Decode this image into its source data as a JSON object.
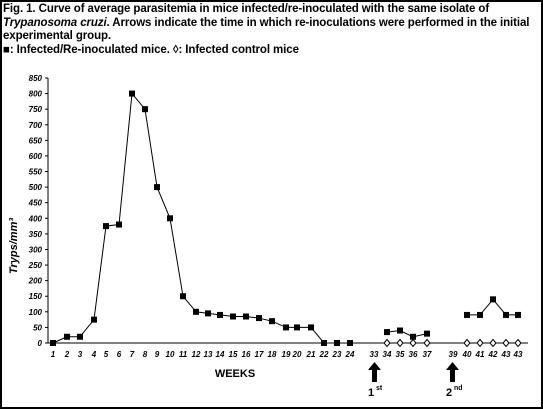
{
  "caption": {
    "part1": "Fig. 1. Curve of average parasitemia in mice infected/re-inoculated with the same isolate of ",
    "italic1": "Trypanosoma cruzi",
    "part2": ". Arrows indicate the time in which re-inoculations were performed in the initial experimental group.",
    "legend_line": "■: Infected/Re-inoculated mice. ◊: Infected control mice"
  },
  "arrows": [
    {
      "main": "1",
      "sup": "st"
    },
    {
      "main": "2",
      "sup": "nd"
    }
  ],
  "colors": {
    "line": "#000000",
    "background": "#ffffff"
  },
  "chart_data": {
    "type": "line",
    "xlabel": "WEEKS",
    "ylabel": "Tryps/mm³",
    "ylim": [
      0,
      850
    ],
    "yticks": [
      0,
      50,
      100,
      150,
      200,
      250,
      300,
      350,
      400,
      450,
      500,
      550,
      600,
      650,
      700,
      750,
      800,
      850
    ],
    "categories": [
      "1",
      "2",
      "3",
      "4",
      "5",
      "6",
      "7",
      "8",
      "9",
      "10",
      "11",
      "12",
      "13",
      "14",
      "15",
      "16",
      "17",
      "18",
      "19",
      "20",
      "21",
      "22",
      "23",
      "24",
      "33",
      "34",
      "35",
      "36",
      "37",
      "39",
      "40",
      "41",
      "42",
      "43",
      "43"
    ],
    "grid": false,
    "series": [
      {
        "marker": "square",
        "segments": [
          {
            "x": [
              "1",
              "2",
              "3",
              "4",
              "5",
              "6",
              "7",
              "8",
              "9",
              "10",
              "11",
              "12",
              "13",
              "14",
              "15",
              "16",
              "17",
              "18",
              "19",
              "20",
              "21",
              "22",
              "23",
              "24"
            ],
            "values": [
              0,
              20,
              20,
              75,
              375,
              380,
              800,
              750,
              500,
              400,
              150,
              100,
              95,
              90,
              85,
              85,
              80,
              70,
              50,
              50,
              50,
              0,
              0,
              0
            ]
          },
          {
            "x": [
              "34",
              "35",
              "36",
              "37"
            ],
            "values": [
              35,
              40,
              20,
              30
            ]
          },
          {
            "x": [
              "40",
              "41",
              "42",
              "43",
              "43"
            ],
            "values": [
              90,
              90,
              140,
              90,
              90
            ]
          }
        ]
      },
      {
        "marker": "diamond",
        "segments": [
          {
            "x": [
              "34",
              "35",
              "36",
              "37"
            ],
            "values": [
              0,
              0,
              0,
              0
            ]
          },
          {
            "x": [
              "40",
              "41",
              "42",
              "43",
              "43"
            ],
            "values": [
              0,
              0,
              0,
              0,
              0
            ]
          }
        ]
      }
    ]
  }
}
